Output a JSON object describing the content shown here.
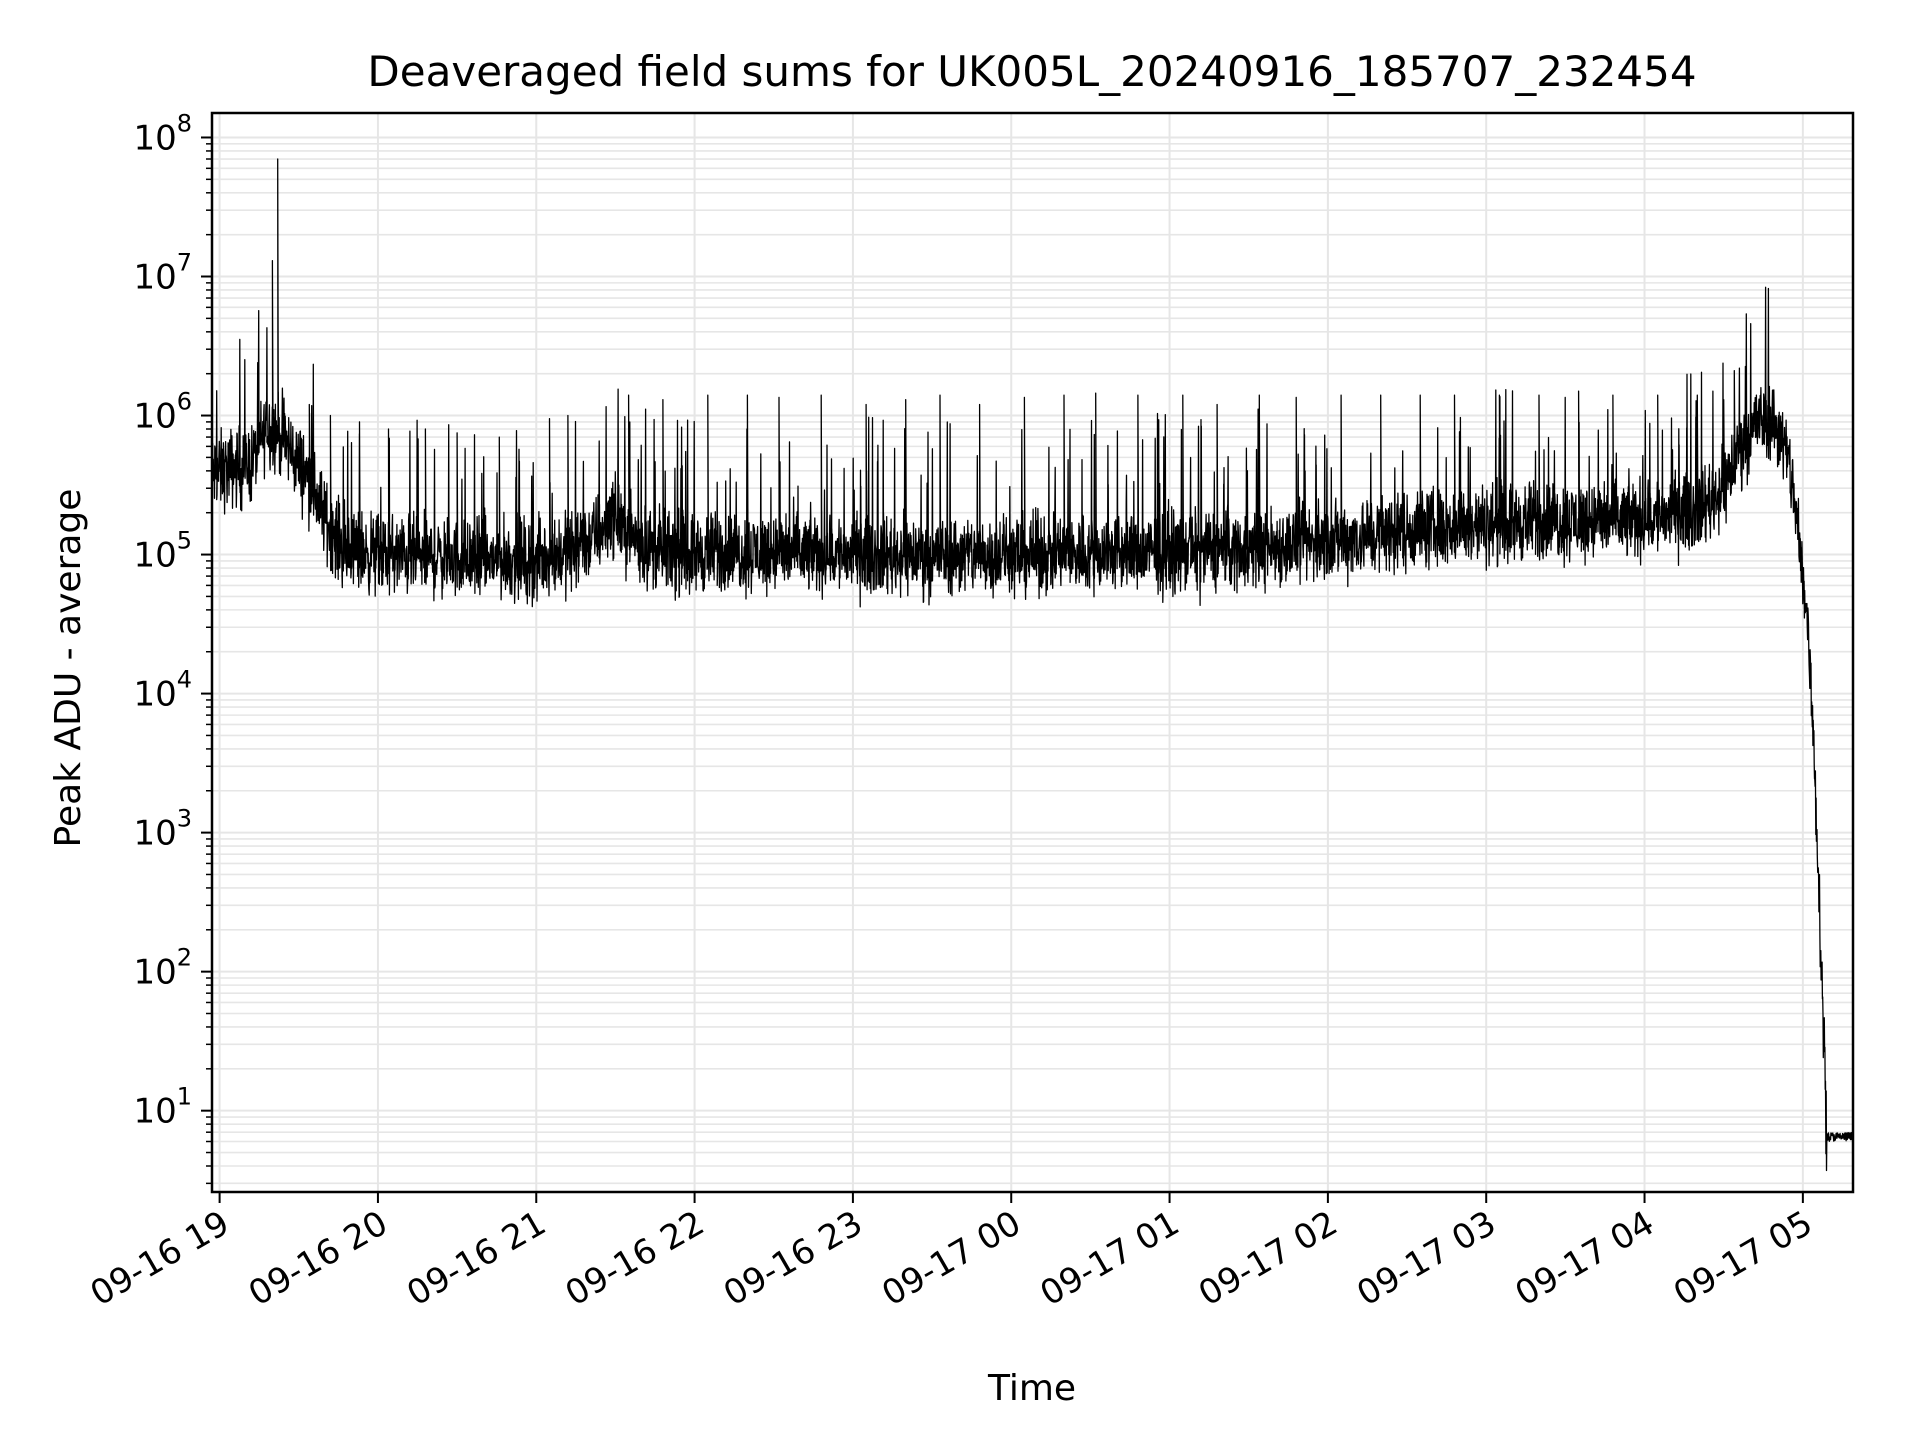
{
  "chart_data": {
    "type": "line",
    "title": "Deaveraged field sums for UK005L_20240916_185707_232454",
    "xlabel": "Time",
    "ylabel": "Peak ADU - average",
    "y_scale": "log",
    "ylim": [
      2.6,
      150000000
    ],
    "xlim": [
      "2024-09-16 18:57:07",
      "2024-09-17 05:19:00"
    ],
    "grid": true,
    "legend": "none",
    "line_color": "#000000",
    "grid_color": "#e6e6e6",
    "x_ticks": [
      {
        "t": "2024-09-16 19:00",
        "label": "09-16 19"
      },
      {
        "t": "2024-09-16 20:00",
        "label": "09-16 20"
      },
      {
        "t": "2024-09-16 21:00",
        "label": "09-16 21"
      },
      {
        "t": "2024-09-16 22:00",
        "label": "09-16 22"
      },
      {
        "t": "2024-09-16 23:00",
        "label": "09-16 23"
      },
      {
        "t": "2024-09-17 00:00",
        "label": "09-17 00"
      },
      {
        "t": "2024-09-17 01:00",
        "label": "09-17 01"
      },
      {
        "t": "2024-09-17 02:00",
        "label": "09-17 02"
      },
      {
        "t": "2024-09-17 03:00",
        "label": "09-17 03"
      },
      {
        "t": "2024-09-17 04:00",
        "label": "09-17 04"
      },
      {
        "t": "2024-09-17 05:00",
        "label": "09-17 05"
      }
    ],
    "y_ticks": [
      {
        "v": 10,
        "base": "10",
        "exp": "1"
      },
      {
        "v": 100,
        "base": "10",
        "exp": "2"
      },
      {
        "v": 1000,
        "base": "10",
        "exp": "3"
      },
      {
        "v": 10000,
        "base": "10",
        "exp": "4"
      },
      {
        "v": 100000,
        "base": "10",
        "exp": "5"
      },
      {
        "v": 1000000,
        "base": "10",
        "exp": "6"
      },
      {
        "v": 10000000,
        "base": "10",
        "exp": "7"
      },
      {
        "v": 100000000,
        "base": "10",
        "exp": "8"
      }
    ],
    "series": [
      {
        "baseline": [
          [
            "2024-09-16 18:57",
            380000
          ],
          [
            "2024-09-16 19:05",
            420000
          ],
          [
            "2024-09-16 19:12",
            450000
          ],
          [
            "2024-09-16 19:18",
            850000
          ],
          [
            "2024-09-16 19:24",
            700000
          ],
          [
            "2024-09-16 19:30",
            450000
          ],
          [
            "2024-09-16 19:35",
            330000
          ],
          [
            "2024-09-16 19:40",
            180000
          ],
          [
            "2024-09-16 19:47",
            110000
          ],
          [
            "2024-09-16 20:00",
            100000
          ],
          [
            "2024-09-16 20:30",
            95000
          ],
          [
            "2024-09-16 21:00",
            90000
          ],
          [
            "2024-09-16 21:15",
            110000
          ],
          [
            "2024-09-16 21:25",
            150000
          ],
          [
            "2024-09-16 21:28",
            200000
          ],
          [
            "2024-09-16 21:33",
            160000
          ],
          [
            "2024-09-16 21:40",
            120000
          ],
          [
            "2024-09-16 21:50",
            100000
          ],
          [
            "2024-09-16 22:30",
            105000
          ],
          [
            "2024-09-16 23:00",
            100000
          ],
          [
            "2024-09-17 00:00",
            100000
          ],
          [
            "2024-09-17 01:00",
            105000
          ],
          [
            "2024-09-17 01:30",
            110000
          ],
          [
            "2024-09-17 02:00",
            125000
          ],
          [
            "2024-09-17 02:30",
            150000
          ],
          [
            "2024-09-17 03:00",
            165000
          ],
          [
            "2024-09-17 03:30",
            175000
          ],
          [
            "2024-09-17 04:00",
            180000
          ],
          [
            "2024-09-17 04:20",
            210000
          ],
          [
            "2024-09-17 04:30",
            300000
          ],
          [
            "2024-09-17 04:36",
            600000
          ],
          [
            "2024-09-17 04:42",
            900000
          ],
          [
            "2024-09-17 04:48",
            950000
          ],
          [
            "2024-09-17 04:52",
            700000
          ],
          [
            "2024-09-17 04:56",
            350000
          ],
          [
            "2024-09-17 04:59",
            100000
          ],
          [
            "2024-09-17 05:02",
            30000
          ],
          [
            "2024-09-17 05:04",
            5000
          ],
          [
            "2024-09-17 05:06",
            500
          ],
          [
            "2024-09-17 05:07",
            100
          ],
          [
            "2024-09-17 05:08",
            40
          ],
          [
            "2024-09-17 05:09",
            6.5
          ],
          [
            "2024-09-17 05:19",
            6.5
          ]
        ],
        "spikes": [
          [
            "2024-09-16 19:20",
            13000000
          ],
          [
            "2024-09-16 19:22",
            70000000
          ],
          [
            "2024-09-16 19:34",
            1200000
          ],
          [
            "2024-09-16 19:42",
            1000000
          ],
          [
            "2024-09-16 19:53",
            900000
          ],
          [
            "2024-09-16 20:04",
            800000
          ],
          [
            "2024-09-16 20:18",
            800000
          ],
          [
            "2024-09-16 20:30",
            750000
          ],
          [
            "2024-09-16 20:46",
            700000
          ],
          [
            "2024-09-16 21:05",
            950000
          ],
          [
            "2024-09-16 21:12",
            1000000
          ],
          [
            "2024-09-16 21:35",
            1400000
          ],
          [
            "2024-09-16 21:48",
            1300000
          ],
          [
            "2024-09-16 22:05",
            1400000
          ],
          [
            "2024-09-16 22:20",
            1400000
          ],
          [
            "2024-09-16 22:32",
            1350000
          ],
          [
            "2024-09-16 22:48",
            1400000
          ],
          [
            "2024-09-16 23:05",
            1200000
          ],
          [
            "2024-09-16 23:20",
            1300000
          ],
          [
            "2024-09-16 23:33",
            1400000
          ],
          [
            "2024-09-16 23:48",
            1200000
          ],
          [
            "2024-09-17 00:05",
            1350000
          ],
          [
            "2024-09-17 00:20",
            1400000
          ],
          [
            "2024-09-17 00:32",
            1450000
          ],
          [
            "2024-09-17 00:48",
            1400000
          ],
          [
            "2024-09-17 01:05",
            1400000
          ],
          [
            "2024-09-17 01:18",
            1200000
          ],
          [
            "2024-09-17 01:34",
            1400000
          ],
          [
            "2024-09-17 01:48",
            1350000
          ],
          [
            "2024-09-17 02:05",
            1400000
          ],
          [
            "2024-09-17 02:20",
            1400000
          ],
          [
            "2024-09-17 02:35",
            1400000
          ],
          [
            "2024-09-17 02:48",
            1400000
          ],
          [
            "2024-09-17 03:05",
            1400000
          ],
          [
            "2024-09-17 03:20",
            1400000
          ],
          [
            "2024-09-17 03:35",
            1500000
          ],
          [
            "2024-09-17 03:48",
            1400000
          ],
          [
            "2024-09-17 04:05",
            1400000
          ],
          [
            "2024-09-17 04:20",
            1400000
          ],
          [
            "2024-09-17 04:30",
            1300000
          ],
          [
            "2024-09-17 04:34",
            2100000
          ]
        ]
      }
    ]
  }
}
